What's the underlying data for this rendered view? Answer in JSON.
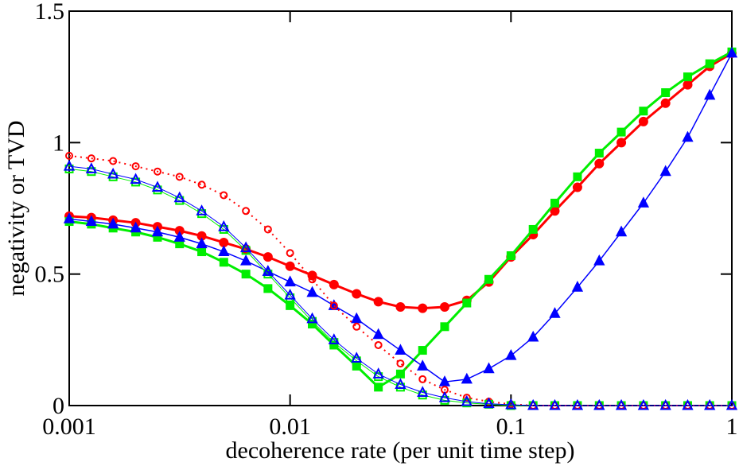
{
  "chart_data": {
    "type": "line",
    "xlabel": "decoherence rate (per unit time step)",
    "ylabel": "negativity or TVD",
    "xscale": "log",
    "x": [
      0.001,
      0.00126,
      0.00158,
      0.002,
      0.00251,
      0.00316,
      0.00398,
      0.00501,
      0.00631,
      0.00794,
      0.01,
      0.0126,
      0.0158,
      0.02,
      0.0251,
      0.0316,
      0.0398,
      0.0501,
      0.0631,
      0.0794,
      0.1,
      0.126,
      0.158,
      0.2,
      0.251,
      0.316,
      0.398,
      0.501,
      0.631,
      0.794,
      1
    ],
    "xlim": [
      0.001,
      1
    ],
    "xticks": [
      0.001,
      0.01,
      0.1,
      1
    ],
    "ylim": [
      0,
      1.5
    ],
    "yticks": [
      0,
      0.5,
      1,
      1.5
    ],
    "series": [
      {
        "color": "#ff0000",
        "marker": "circle",
        "filled": true,
        "dash": "solid",
        "width": 3,
        "values": [
          0.72,
          0.715,
          0.705,
          0.695,
          0.68,
          0.665,
          0.645,
          0.62,
          0.595,
          0.565,
          0.53,
          0.495,
          0.46,
          0.425,
          0.395,
          0.375,
          0.37,
          0.375,
          0.4,
          0.47,
          0.565,
          0.65,
          0.74,
          0.83,
          0.92,
          1.0,
          1.08,
          1.15,
          1.22,
          1.29,
          1.34
        ]
      },
      {
        "color": "#00ee00",
        "marker": "square",
        "filled": true,
        "dash": "solid",
        "width": 3,
        "values": [
          0.7,
          0.69,
          0.675,
          0.66,
          0.64,
          0.615,
          0.585,
          0.545,
          0.5,
          0.445,
          0.38,
          0.31,
          0.23,
          0.15,
          0.07,
          0.12,
          0.21,
          0.3,
          0.39,
          0.48,
          0.57,
          0.67,
          0.77,
          0.87,
          0.96,
          1.04,
          1.12,
          1.19,
          1.25,
          1.3,
          1.345
        ]
      },
      {
        "color": "#0000ff",
        "marker": "triangle",
        "filled": true,
        "dash": "solid",
        "width": 1.5,
        "values": [
          0.71,
          0.7,
          0.69,
          0.675,
          0.66,
          0.64,
          0.615,
          0.585,
          0.55,
          0.51,
          0.47,
          0.43,
          0.38,
          0.33,
          0.27,
          0.21,
          0.15,
          0.09,
          0.1,
          0.14,
          0.19,
          0.26,
          0.35,
          0.45,
          0.55,
          0.66,
          0.77,
          0.89,
          1.02,
          1.18,
          1.34
        ]
      },
      {
        "color": "#ff0000",
        "marker": "circle",
        "filled": false,
        "dash": "dotted",
        "width": 2,
        "values": [
          0.95,
          0.94,
          0.93,
          0.91,
          0.89,
          0.87,
          0.84,
          0.8,
          0.74,
          0.67,
          0.58,
          0.48,
          0.38,
          0.3,
          0.23,
          0.16,
          0.1,
          0.06,
          0.03,
          0.015,
          0.005,
          0,
          0,
          0,
          0,
          0,
          0,
          0,
          0,
          0,
          0
        ]
      },
      {
        "color": "#00ee00",
        "marker": "square",
        "filled": false,
        "dash": "solid",
        "width": 1,
        "values": [
          0.9,
          0.89,
          0.87,
          0.85,
          0.82,
          0.78,
          0.73,
          0.67,
          0.59,
          0.5,
          0.41,
          0.32,
          0.24,
          0.17,
          0.11,
          0.07,
          0.04,
          0.02,
          0.01,
          0.005,
          0,
          0,
          0,
          0,
          0,
          0,
          0,
          0,
          0,
          0,
          0
        ]
      },
      {
        "color": "#0000ff",
        "marker": "triangle",
        "filled": false,
        "dash": "solid",
        "width": 1,
        "values": [
          0.91,
          0.9,
          0.88,
          0.86,
          0.83,
          0.79,
          0.74,
          0.68,
          0.6,
          0.51,
          0.42,
          0.33,
          0.25,
          0.18,
          0.12,
          0.08,
          0.05,
          0.03,
          0.015,
          0.007,
          0.003,
          0,
          0,
          0,
          0,
          0,
          0,
          0,
          0,
          0,
          0
        ]
      }
    ]
  }
}
